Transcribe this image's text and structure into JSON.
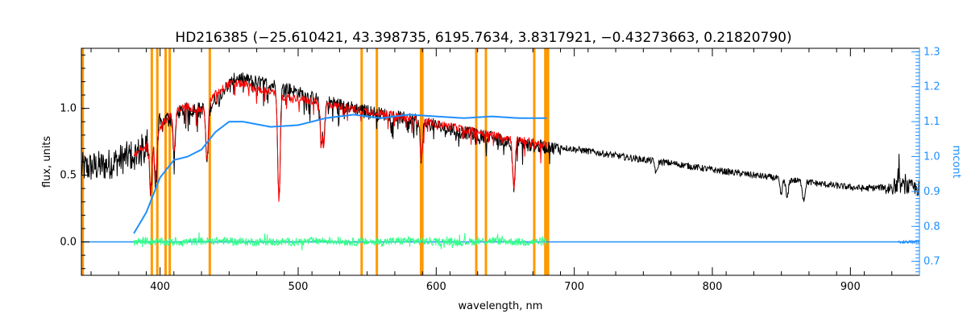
{
  "chart_data": {
    "type": "line",
    "title": "HD216385   (−25.610421, 43.398735, 6195.7634, 3.8317921, −0.43273663, 0.21820790)",
    "xlabel": "wavelength, nm",
    "ylabel": "flux, units",
    "y2label": "mcont",
    "xlim": [
      343,
      950
    ],
    "ylim": [
      -0.25,
      1.45
    ],
    "y2lim": [
      0.66,
      1.31
    ],
    "x_ticks": [
      400,
      500,
      600,
      700,
      800,
      900
    ],
    "y_ticks": [
      0.0,
      0.5,
      1.0
    ],
    "y_tick_labels": [
      "0.0",
      "0.5",
      "1.0"
    ],
    "y2_ticks": [
      0.7,
      0.8,
      0.9,
      1.0,
      1.1,
      1.2,
      1.3
    ],
    "y2_tick_labels": [
      "0.7",
      "0.8",
      "0.9",
      "1.0",
      "1.1",
      "1.2",
      "1.3"
    ],
    "grid": false,
    "colors": {
      "observed": "#000000",
      "model": "#ff0000",
      "continuum": "#1f8fff",
      "residual": "#33ff88",
      "masks": "#ff9900",
      "right_axis": "#1f8fff"
    },
    "mask_lines": [
      344,
      394,
      398,
      404,
      407,
      436,
      546,
      557,
      589,
      590,
      629,
      636,
      671,
      679,
      680,
      681
    ],
    "strong_absorption_lines": [
      {
        "x": 393.4,
        "depth": 0.5
      },
      {
        "x": 396.8,
        "depth": 0.45
      },
      {
        "x": 410.2,
        "depth": 0.3
      },
      {
        "x": 434.0,
        "depth": 0.4
      },
      {
        "x": 486.1,
        "depth": 0.7
      },
      {
        "x": 516.9,
        "depth": 0.3
      },
      {
        "x": 518.4,
        "depth": 0.3
      },
      {
        "x": 589.3,
        "depth": 0.3
      },
      {
        "x": 656.3,
        "depth": 0.45
      },
      {
        "x": 759.4,
        "depth": 0.15
      },
      {
        "x": 849.8,
        "depth": 0.25
      },
      {
        "x": 854.2,
        "depth": 0.3
      },
      {
        "x": 866.2,
        "depth": 0.3
      }
    ],
    "series": [
      {
        "key": "observed",
        "x": [
          343,
          360,
          375,
          385,
          395,
          405,
          420,
          435,
          445,
          455,
          470,
          490,
          510,
          530,
          550,
          570,
          590,
          610,
          630,
          650,
          670,
          690,
          710,
          740,
          770,
          800,
          830,
          860,
          890,
          910,
          925,
          935,
          945,
          950
        ],
        "y": [
          0.6,
          0.62,
          0.68,
          0.72,
          0.85,
          0.95,
          1.02,
          1.02,
          1.15,
          1.25,
          1.22,
          1.18,
          1.1,
          1.05,
          1.0,
          0.96,
          0.92,
          0.86,
          0.82,
          0.78,
          0.74,
          0.72,
          0.69,
          0.64,
          0.6,
          0.55,
          0.51,
          0.47,
          0.43,
          0.41,
          0.42,
          0.45,
          0.43,
          0.42
        ]
      },
      {
        "key": "model",
        "x": [
          381,
          390,
          400,
          410,
          420,
          430,
          440,
          450,
          460,
          470,
          480,
          490,
          500,
          520,
          540,
          560,
          580,
          600,
          620,
          640,
          660,
          670,
          680
        ],
        "y": [
          0.65,
          0.75,
          0.88,
          1.0,
          1.03,
          1.0,
          1.12,
          1.2,
          1.2,
          1.16,
          1.14,
          1.1,
          1.09,
          1.05,
          1.01,
          0.98,
          0.94,
          0.9,
          0.86,
          0.82,
          0.78,
          0.76,
          0.74
        ]
      },
      {
        "key": "continuum",
        "axis": "right",
        "x": [
          381,
          390,
          400,
          410,
          420,
          430,
          440,
          450,
          460,
          480,
          500,
          520,
          540,
          560,
          580,
          600,
          620,
          640,
          660,
          680
        ],
        "y": [
          0.78,
          0.84,
          0.94,
          0.99,
          1.0,
          1.02,
          1.07,
          1.1,
          1.1,
          1.085,
          1.09,
          1.11,
          1.12,
          1.11,
          1.12,
          1.115,
          1.11,
          1.115,
          1.11,
          1.11
        ]
      },
      {
        "key": "residual",
        "x": [
          381,
          390,
          400,
          420,
          440,
          460,
          480,
          500,
          520,
          540,
          560,
          580,
          600,
          620,
          640,
          660,
          680
        ],
        "y": [
          0.0,
          0.01,
          0.0,
          0.0,
          0.01,
          0.0,
          0.0,
          0.0,
          0.01,
          0.0,
          0.0,
          0.01,
          0.0,
          0.0,
          0.01,
          0.0,
          0.0
        ]
      },
      {
        "key": "zero_line",
        "x": [
          343,
          381,
          680,
          950
        ],
        "y": [
          0.0,
          0.0,
          0.0,
          0.0
        ]
      }
    ]
  }
}
